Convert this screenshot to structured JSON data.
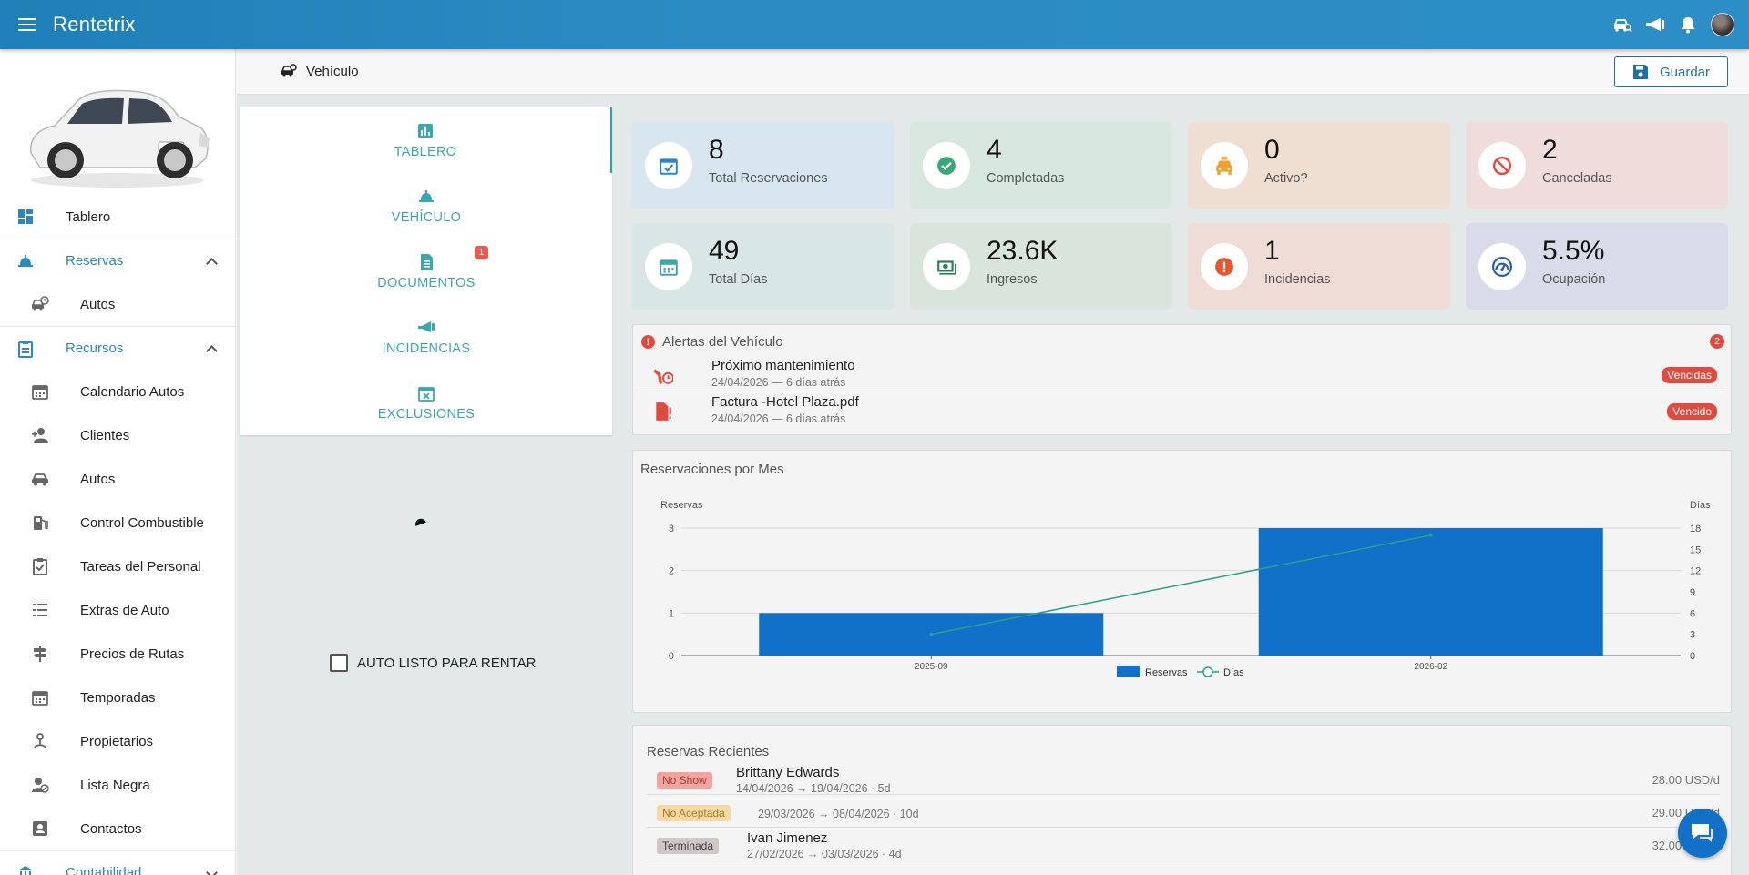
{
  "app": {
    "title": "Rentetrix"
  },
  "colors": {
    "accent": "#2b8cc4",
    "teal": "#3aa6ad",
    "danger": "#e04a3f",
    "bar": "#1170c8",
    "line": "#2aa08a"
  },
  "sidebar": {
    "items": [
      {
        "label": "Tablero",
        "icon": "dashboard-icon",
        "type": "item"
      },
      {
        "label": "Reservas",
        "icon": "service-bell-icon",
        "type": "group",
        "expanded": true
      },
      {
        "label": "Autos",
        "icon": "car-clock-icon",
        "type": "child"
      },
      {
        "label": "Recursos",
        "icon": "clipboard-icon",
        "type": "group",
        "expanded": true
      },
      {
        "label": "Calendario Autos",
        "icon": "calendar-icon",
        "type": "child"
      },
      {
        "label": "Clientes",
        "icon": "user-add-icon",
        "type": "child"
      },
      {
        "label": "Autos",
        "icon": "car-icon",
        "type": "child"
      },
      {
        "label": "Control Combustible",
        "icon": "fuel-icon",
        "type": "child"
      },
      {
        "label": "Tareas del Personal",
        "icon": "clipboard-check-icon",
        "type": "child"
      },
      {
        "label": "Extras de Auto",
        "icon": "list-icon",
        "type": "child"
      },
      {
        "label": "Precios de Rutas",
        "icon": "signpost-icon",
        "type": "child"
      },
      {
        "label": "Temporadas",
        "icon": "calendar-icon",
        "type": "child"
      },
      {
        "label": "Propietarios",
        "icon": "owner-icon",
        "type": "child"
      },
      {
        "label": "Lista Negra",
        "icon": "user-block-icon",
        "type": "child"
      },
      {
        "label": "Contactos",
        "icon": "contact-card-icon",
        "type": "child"
      },
      {
        "label": "Contabilidad",
        "icon": "bank-icon",
        "type": "group",
        "expanded": false
      }
    ]
  },
  "header": {
    "title": "Vehículo",
    "save_label": "Guardar"
  },
  "tabs": [
    {
      "label": "TABLERO",
      "icon": "bar-chart-icon",
      "active": true
    },
    {
      "label": "VEHÍCULO",
      "icon": "service-bell-icon",
      "active": false
    },
    {
      "label": "DOCUMENTOS",
      "icon": "document-icon",
      "active": false,
      "badge": "1"
    },
    {
      "label": "INCIDENCIAS",
      "icon": "horn-icon",
      "active": false
    },
    {
      "label": "EXCLUSIONES",
      "icon": "calendar-x-icon",
      "active": false
    }
  ],
  "ready_label": "AUTO LISTO PARA RENTAR",
  "stats": [
    {
      "value": "8",
      "label": "Total Reservaciones",
      "icon": "calendar-check-icon",
      "bg": "#d7e6ef",
      "color": "#2a87c0"
    },
    {
      "value": "4",
      "label": "Completadas",
      "icon": "check-circle-icon",
      "bg": "#d8e6e0",
      "color": "#3aa878"
    },
    {
      "value": "0",
      "label": "Activo?",
      "icon": "taxi-icon",
      "bg": "#efdfd3",
      "color": "#f0a030"
    },
    {
      "value": "2",
      "label": "Canceladas",
      "icon": "block-icon",
      "bg": "#efdcdb",
      "color": "#e04a3f"
    },
    {
      "value": "49",
      "label": "Total Días",
      "icon": "calendar-icon",
      "bg": "#d8e6e6",
      "color": "#3aa6ad"
    },
    {
      "value": "23.6K",
      "label": "Ingresos",
      "icon": "money-icon",
      "bg": "#d8e4dc",
      "color": "#2e7d5b"
    },
    {
      "value": "1",
      "label": "Incidencias",
      "icon": "alert-circle-icon",
      "bg": "#efdcd6",
      "color": "#e8552f"
    },
    {
      "value": "5.5%",
      "label": "Ocupación",
      "icon": "gauge-icon",
      "bg": "#d9dbe8",
      "color": "#2a5ca8"
    }
  ],
  "alerts": {
    "title": "Alertas del Vehículo",
    "count": "2",
    "items": [
      {
        "title": "Próximo mantenimiento",
        "date": "24/04/2026 — 6 días atrás",
        "tag": "Vencidas",
        "icon": "wrench-clock-icon"
      },
      {
        "title": "Factura -Hotel Plaza.pdf",
        "date": "24/04/2026 — 6 días atrás",
        "tag": "Vencido",
        "icon": "file-alert-icon"
      }
    ]
  },
  "chart_data": {
    "type": "bar",
    "title": "Reservaciones por Mes",
    "categories": [
      "2025-09",
      "2026-02"
    ],
    "ylabel": "Reservas",
    "y2label": "Días",
    "ylim": [
      0,
      3
    ],
    "y2lim": [
      0,
      18
    ],
    "yticks": [
      "0",
      "1",
      "2",
      "3"
    ],
    "y2ticks": [
      "0",
      "3",
      "6",
      "9",
      "12",
      "15",
      "18"
    ],
    "grid": true,
    "legend": "bottom",
    "series": [
      {
        "name": "Reservas",
        "type": "bar",
        "axis": "left",
        "values": [
          1,
          3
        ]
      },
      {
        "name": "Días",
        "type": "line",
        "axis": "right",
        "values": [
          3,
          17
        ]
      }
    ]
  },
  "recent": {
    "title": "Reservas Recientes",
    "rows": [
      {
        "status": "No Show",
        "status_bg": "#f2a5a0",
        "status_fg": "#b03a32",
        "name": "Brittany Edwards",
        "dates": "14/04/2026 → 19/04/2026 · 5d",
        "price": "28.00 USD/d"
      },
      {
        "status": "No Aceptada",
        "status_bg": "#f7d9a8",
        "status_fg": "#b07a20",
        "name": "",
        "dates": "29/03/2026 → 08/04/2026 · 10d",
        "price": "29.00 USD/d"
      },
      {
        "status": "Terminada",
        "status_bg": "#cfc8c6",
        "status_fg": "#444",
        "name": "Ivan Jimenez",
        "dates": "27/02/2026 → 03/03/2026 · 4d",
        "price": "32.00 USD/d"
      }
    ]
  }
}
